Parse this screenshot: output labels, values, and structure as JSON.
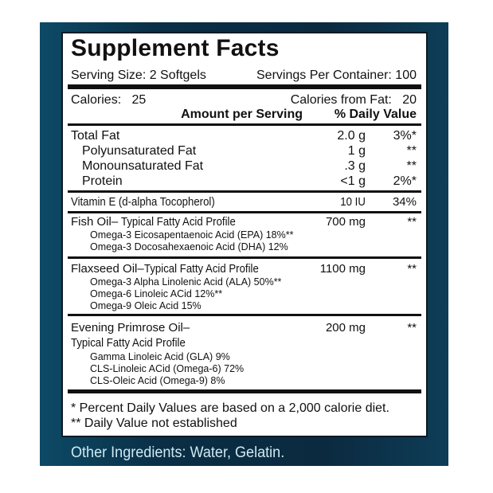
{
  "title": "Supplement Facts",
  "serving_size": "Serving Size: 2 Softgels",
  "servings_per_container": "Servings Per Container: 100",
  "calories": "Calories:   25",
  "calories_from_fat": "Calories from Fat:   20",
  "header": {
    "amount": "Amount per Serving",
    "dv": "% Daily Value"
  },
  "nutrients": [
    {
      "name": "Total Fat",
      "amount": "2.0 g",
      "dv": "3%*"
    },
    {
      "name": "Polyunsaturated Fat",
      "amount": "1 g",
      "dv": "**"
    },
    {
      "name": "Monounsaturated Fat",
      "amount": ".3 g",
      "dv": "**"
    },
    {
      "name": "Protein",
      "amount": "<1 g",
      "dv": "2%*"
    }
  ],
  "vitamin_e": {
    "name": "Vitamin E (d-alpha Tocopherol)",
    "amount": "10 IU",
    "dv": "34%"
  },
  "fish_oil": {
    "name": "Fish Oil–",
    "profile": "Typical Fatty Acid Profile",
    "amount": "700 mg",
    "dv": "**",
    "items": [
      "Omega-3 Eicosapentaenoic Acid (EPA) 18%**",
      "Omega-3 Docosahexaenoic Acid (DHA) 12%"
    ]
  },
  "flaxseed_oil": {
    "name": "Flaxseed Oil–",
    "profile": "Typical Fatty Acid Profile",
    "amount": "1100 mg",
    "dv": "**",
    "items": [
      "Omega-3 Alpha Linolenic Acid (ALA) 50%**",
      "Omega-6 Linoleic ACid 12%**",
      "Omega-9 Oleic Acid 15%"
    ]
  },
  "primrose_oil": {
    "name": "Evening Primrose Oil–",
    "profile": "Typical Fatty Acid Profile",
    "amount": "200 mg",
    "dv": "**",
    "items": [
      "Gamma Linoleic Acid (GLA) 9%",
      "CLS-Linoleic ACid (Omega-6) 72%",
      "CLS-Oleic Acid (Omega-9) 8%"
    ]
  },
  "footnotes": [
    "* Percent Daily Values are based on a 2,000 calorie diet.",
    "** Daily Value not established"
  ],
  "other_ingredients": "Other Ingredients: Water, Gelatin.",
  "colors": {
    "background": "#0b2a40",
    "label": "#ffffff",
    "text": "#111111",
    "other_text": "#cfeaf2"
  }
}
